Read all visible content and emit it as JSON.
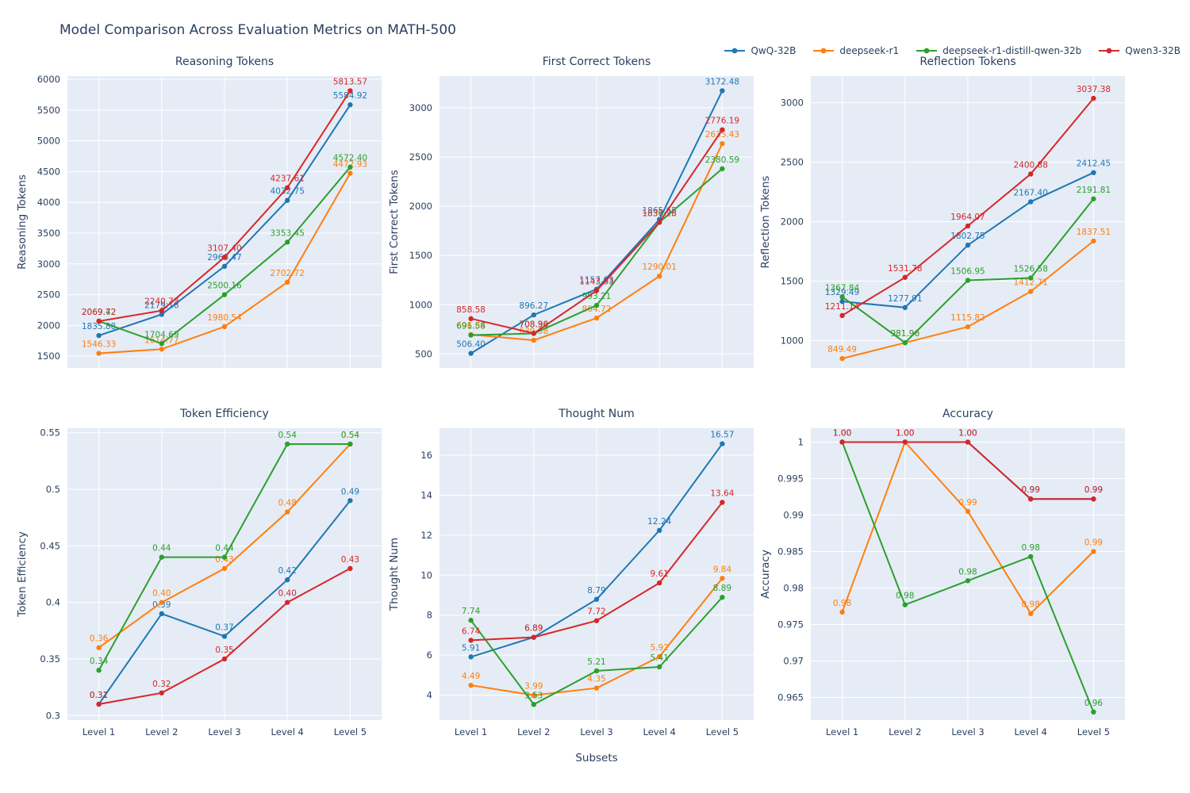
{
  "figure": {
    "title": "Model Comparison Across Evaluation Metrics on MATH-500"
  },
  "xlabel": "Subsets",
  "x_categories": [
    "Level 1",
    "Level 2",
    "Level 3",
    "Level 4",
    "Level 5"
  ],
  "colors": {
    "QwQ-32B": "#1f77b4",
    "deepseek-r1": "#ff7f0e",
    "deepseek-r1-distill-qwen-32b": "#2ca02c",
    "Qwen3-32B": "#d62728",
    "plot_background": "#e5ecf6",
    "grid": "#ffffff",
    "text": "#2a3f5f"
  },
  "legend_items": [
    {
      "label": "QwQ-32B",
      "color": "#1f77b4"
    },
    {
      "label": "deepseek-r1",
      "color": "#ff7f0e"
    },
    {
      "label": "deepseek-r1-distill-qwen-32b",
      "color": "#2ca02c"
    },
    {
      "label": "Qwen3-32B",
      "color": "#d62728"
    }
  ],
  "chart_data": [
    {
      "type": "line",
      "title": "Reasoning Tokens",
      "ylabel": "Reasoning Tokens",
      "ylim": [
        1309,
        6051
      ],
      "ytick_values": [
        1500,
        2000,
        2500,
        3000,
        3500,
        4000,
        4500,
        5000,
        5500,
        6000
      ],
      "ytick_labels": [
        "1500",
        "2000",
        "2500",
        "3000",
        "3500",
        "4000",
        "4500",
        "5000",
        "5500",
        "6000"
      ],
      "show_x_ticks": false,
      "series": [
        {
          "name": "QwQ-32B",
          "color": "#1f77b4",
          "values": [
            1835.88,
            2179.18,
            2960.47,
            4032.75,
            5584.92
          ],
          "labels": [
            "1835.88",
            "2179.18",
            "2960.47",
            "4032.75",
            "5584.92"
          ]
        },
        {
          "name": "deepseek-r1",
          "color": "#ff7f0e",
          "values": [
            1546.33,
            1614.77,
            1980.54,
            2702.72,
            4472.93
          ],
          "labels": [
            "1546.33",
            "1614.77",
            "1980.54",
            "2702.72",
            "4472.93"
          ]
        },
        {
          "name": "deepseek-r1-distill-qwen-32b",
          "color": "#2ca02c",
          "values": [
            2069.42,
            1704.69,
            2500.16,
            3353.45,
            4572.4
          ],
          "labels": [
            "2069.42",
            "1704.69",
            "2500.16",
            "3353.45",
            "4572.40"
          ]
        },
        {
          "name": "Qwen3-32B",
          "color": "#d62728",
          "values": [
            2069.72,
            2240.73,
            3107.4,
            4237.61,
            5813.57
          ],
          "labels": [
            "2069.72",
            "2240.73",
            "3107.40",
            "4237.61",
            "5813.57"
          ]
        }
      ]
    },
    {
      "type": "line",
      "title": "First Correct Tokens",
      "ylabel": "First Correct Tokens",
      "ylim": [
        358,
        3321
      ],
      "ytick_values": [
        500,
        1000,
        1500,
        2000,
        2500,
        3000
      ],
      "ytick_labels": [
        "500",
        "1000",
        "1500",
        "2000",
        "2500",
        "3000"
      ],
      "show_x_ticks": false,
      "series": [
        {
          "name": "QwQ-32B",
          "color": "#1f77b4",
          "values": [
            506.4,
            896.27,
            1157.63,
            1865.65,
            3172.48
          ],
          "labels": [
            "506.40",
            "896.27",
            "1157.63",
            "1865.65",
            "3172.48"
          ]
        },
        {
          "name": "deepseek-r1",
          "color": "#ff7f0e",
          "values": [
            696.84,
            639.38,
            864.72,
            1290.01,
            2635.43
          ],
          "labels": [
            "696.84",
            "639.38",
            "864.72",
            "1290.01",
            "2635.43"
          ]
        },
        {
          "name": "deepseek-r1-distill-qwen-32b",
          "color": "#2ca02c",
          "values": [
            691.58,
            708.3,
            993.21,
            1836.23,
            2380.59
          ],
          "labels": [
            "691.58",
            "708.30",
            "993.21",
            "1836.23",
            "2380.59"
          ]
        },
        {
          "name": "Qwen3-32B",
          "color": "#d62728",
          "values": [
            858.58,
            708.96,
            1143.33,
            1837.28,
            2776.19
          ],
          "labels": [
            "858.58",
            "708.96",
            "1143.33",
            "1837.28",
            "2776.19"
          ]
        }
      ]
    },
    {
      "type": "line",
      "title": "Reflection Tokens",
      "ylabel": "Reflection Tokens",
      "ylim": [
        770,
        3224
      ],
      "ytick_values": [
        1000,
        1500,
        2000,
        2500,
        3000
      ],
      "ytick_labels": [
        "1000",
        "1500",
        "2000",
        "2500",
        "3000"
      ],
      "show_x_ticks": false,
      "series": [
        {
          "name": "QwQ-32B",
          "color": "#1f77b4",
          "values": [
            1329.49,
            1277.91,
            1802.75,
            2167.4,
            2412.45
          ],
          "labels": [
            "1329.49",
            "1277.91",
            "1802.75",
            "2167.40",
            "2412.45"
          ]
        },
        {
          "name": "deepseek-r1",
          "color": "#ff7f0e",
          "values": [
            849.49,
            981.9,
            1115.82,
            1412.71,
            1837.51
          ],
          "labels": [
            "849.49",
            "981.90",
            "1115.82",
            "1412.71",
            "1837.51"
          ]
        },
        {
          "name": "deepseek-r1-distill-qwen-32b",
          "color": "#2ca02c",
          "values": [
            1367.84,
            981.96,
            1506.95,
            1526.58,
            2191.81
          ],
          "labels": [
            "1367.84",
            "981.96",
            "1506.95",
            "1526.58",
            "2191.81"
          ]
        },
        {
          "name": "Qwen3-32B",
          "color": "#d62728",
          "values": [
            1211.14,
            1531.78,
            1964.07,
            2400.88,
            3037.38
          ],
          "labels": [
            "1211.14",
            "1531.78",
            "1964.07",
            "2400.88",
            "3037.38"
          ]
        }
      ]
    },
    {
      "type": "line",
      "title": "Token Efficiency",
      "ylabel": "Token Efficiency",
      "ylim": [
        0.296,
        0.554
      ],
      "ytick_values": [
        0.3,
        0.35,
        0.4,
        0.45,
        0.5,
        0.55
      ],
      "ytick_labels": [
        "0.3",
        "0.35",
        "0.4",
        "0.45",
        "0.5",
        "0.55"
      ],
      "show_x_ticks": true,
      "series": [
        {
          "name": "QwQ-32B",
          "color": "#1f77b4",
          "values": [
            0.31,
            0.39,
            0.37,
            0.42,
            0.49
          ],
          "labels": [
            "0.31",
            "0.39",
            "0.37",
            "0.42",
            "0.49"
          ]
        },
        {
          "name": "deepseek-r1",
          "color": "#ff7f0e",
          "values": [
            0.36,
            0.4,
            0.43,
            0.48,
            0.54
          ],
          "labels": [
            "0.36",
            "0.40",
            "0.43",
            "0.48",
            "0.54"
          ]
        },
        {
          "name": "deepseek-r1-distill-qwen-32b",
          "color": "#2ca02c",
          "values": [
            0.34,
            0.44,
            0.44,
            0.54,
            0.54
          ],
          "labels": [
            "0.34",
            "0.44",
            "0.44",
            "0.54",
            "0.54"
          ]
        },
        {
          "name": "Qwen3-32B",
          "color": "#d62728",
          "values": [
            0.31,
            0.32,
            0.35,
            0.4,
            0.43
          ],
          "labels": [
            "0.31",
            "0.32",
            "0.35",
            "0.40",
            "0.43"
          ]
        }
      ]
    },
    {
      "type": "line",
      "title": "Thought Num",
      "ylabel": "Thought Num",
      "ylim": [
        2.75,
        17.35
      ],
      "ytick_values": [
        4,
        6,
        8,
        10,
        12,
        14,
        16
      ],
      "ytick_labels": [
        "4",
        "6",
        "8",
        "10",
        "12",
        "14",
        "16"
      ],
      "show_x_ticks": true,
      "series": [
        {
          "name": "QwQ-32B",
          "color": "#1f77b4",
          "values": [
            5.91,
            6.89,
            8.79,
            12.24,
            16.57
          ],
          "labels": [
            "5.91",
            "6.89",
            "8.79",
            "12.24",
            "16.57"
          ]
        },
        {
          "name": "deepseek-r1",
          "color": "#ff7f0e",
          "values": [
            4.49,
            3.99,
            4.35,
            5.92,
            9.84
          ],
          "labels": [
            "4.49",
            "3.99",
            "4.35",
            "5.92",
            "9.84"
          ]
        },
        {
          "name": "deepseek-r1-distill-qwen-32b",
          "color": "#2ca02c",
          "values": [
            7.74,
            3.53,
            5.21,
            5.41,
            8.89
          ],
          "labels": [
            "7.74",
            "3.53",
            "5.21",
            "5.41",
            "8.89"
          ]
        },
        {
          "name": "Qwen3-32B",
          "color": "#d62728",
          "values": [
            6.74,
            6.89,
            7.72,
            9.61,
            13.64
          ],
          "labels": [
            "6.74",
            "6.89",
            "7.72",
            "9.61",
            "13.64"
          ]
        }
      ]
    },
    {
      "type": "line",
      "title": "Accuracy",
      "ylabel": "Accuracy",
      "ylim": [
        0.9619,
        1.0019
      ],
      "ytick_values": [
        0.965,
        0.97,
        0.975,
        0.98,
        0.985,
        0.99,
        0.995,
        1
      ],
      "ytick_labels": [
        "0.965",
        "0.97",
        "0.975",
        "0.98",
        "0.985",
        "0.99",
        "0.995",
        "1"
      ],
      "show_x_ticks": true,
      "series": [
        {
          "name": "QwQ-32B",
          "color": "#1f77b4",
          "values": [
            1.0,
            1.0,
            1.0,
            0.9922,
            0.9922
          ],
          "labels": [
            "1.00",
            "1.00",
            "1.00",
            "0.99",
            "0.99"
          ]
        },
        {
          "name": "deepseek-r1",
          "color": "#ff7f0e",
          "values": [
            0.9767,
            1.0,
            0.9905,
            0.9765,
            0.985
          ],
          "labels": [
            "0.98",
            "1.00",
            "0.99",
            "0.98",
            "0.99"
          ]
        },
        {
          "name": "deepseek-r1-distill-qwen-32b",
          "color": "#2ca02c",
          "values": [
            1.0,
            0.9777,
            0.981,
            0.9843,
            0.963
          ],
          "labels": [
            "1.00",
            "0.98",
            "0.98",
            "0.98",
            "0.96"
          ]
        },
        {
          "name": "Qwen3-32B",
          "color": "#d62728",
          "values": [
            1.0,
            1.0,
            1.0,
            0.9922,
            0.9922
          ],
          "labels": [
            "1.00",
            "1.00",
            "1.00",
            "0.99",
            "0.99"
          ]
        }
      ]
    }
  ]
}
